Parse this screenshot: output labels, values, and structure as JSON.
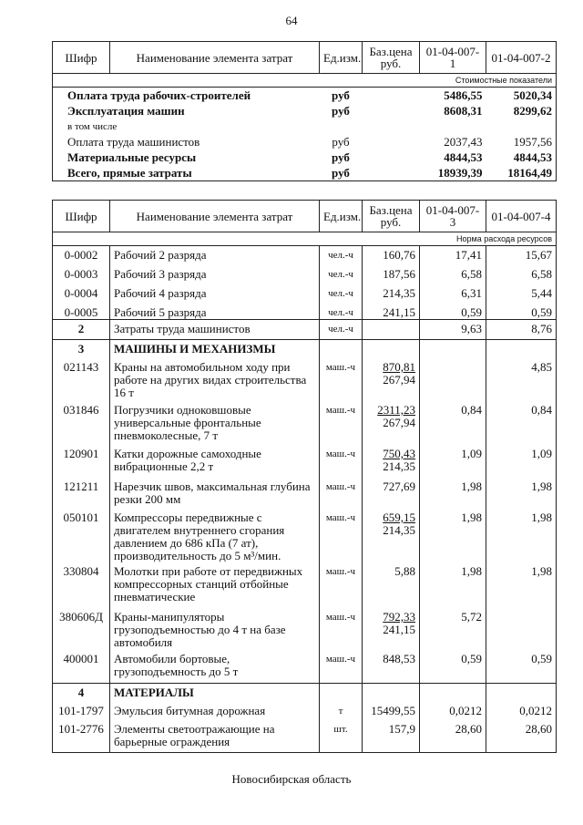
{
  "page_number": "64",
  "footer": "Новосибирская область",
  "table1": {
    "headers": [
      "Шифр",
      "Наименование элемента затрат",
      "Ед.изм.",
      "Баз.цена руб.",
      "01-04-007-1",
      "01-04-007-2"
    ],
    "subheader": "Стоимостные показатели",
    "rows": [
      {
        "name": "Оплата труда рабочих-строителей",
        "unit": "руб",
        "v1": "5486,55",
        "v2": "5020,34",
        "bold": true
      },
      {
        "name": "Эксплуатация машин",
        "unit": "руб",
        "v1": "8608,31",
        "v2": "8299,62",
        "bold": true
      },
      {
        "name": "в том числе",
        "unit": "",
        "v1": "",
        "v2": "",
        "bold": false,
        "small": true
      },
      {
        "name": "Оплата труда машинистов",
        "unit": "руб",
        "v1": "2037,43",
        "v2": "1957,56",
        "bold": false
      },
      {
        "name": "Материальные ресурсы",
        "unit": "руб",
        "v1": "4844,53",
        "v2": "4844,53",
        "bold": true
      },
      {
        "name": "Всего, прямые затраты",
        "unit": "руб",
        "v1": "18939,39",
        "v2": "18164,49",
        "bold": true
      }
    ]
  },
  "table2": {
    "headers": [
      "Шифр",
      "Наименование элемента затрат",
      "Ед.изм.",
      "Баз.цена руб.",
      "01-04-007-3",
      "01-04-007-4"
    ],
    "subheader": "Норма расхода ресурсов",
    "rows": [
      {
        "code": "0-0002",
        "name": "Рабочий 2 разряда",
        "unit": "чел.-ч",
        "price": "160,76",
        "price2": "",
        "v1": "17,41",
        "v2": "15,67"
      },
      {
        "code": "0-0003",
        "name": "Рабочий 3 разряда",
        "unit": "чел.-ч",
        "price": "187,56",
        "price2": "",
        "v1": "6,58",
        "v2": "6,58"
      },
      {
        "code": "0-0004",
        "name": "Рабочий 4 разряда",
        "unit": "чел.-ч",
        "price": "214,35",
        "price2": "",
        "v1": "6,31",
        "v2": "5,44"
      },
      {
        "code": "0-0005",
        "name": "Рабочий 5 разряда",
        "unit": "чел.-ч",
        "price": "241,15",
        "price2": "",
        "v1": "0,59",
        "v2": "0,59"
      },
      {
        "code": "2",
        "name": "Затраты труда машинистов",
        "unit": "чел.-ч",
        "price": "",
        "price2": "",
        "v1": "9,63",
        "v2": "8,76",
        "section": true,
        "sep": true
      },
      {
        "code": "3",
        "name": "МАШИНЫ И МЕХАНИЗМЫ",
        "unit": "",
        "price": "",
        "price2": "",
        "v1": "",
        "v2": "",
        "section": true,
        "heading": true,
        "sep": true
      },
      {
        "code": "021143",
        "name": "Краны на автомобильном ходу при работе на других видах строительства 16 т",
        "unit": "маш.-ч",
        "price": "870,81",
        "price2": "267,94",
        "v1": "",
        "v2": "4,85"
      },
      {
        "code": "031846",
        "name": "Погрузчики одноковшовые универсальные фронтальные пневмоколесные, 7 т",
        "unit": "маш.-ч",
        "price": "2311,23",
        "price2": "267,94",
        "v1": "0,84",
        "v2": "0,84"
      },
      {
        "code": "120901",
        "name": "Катки дорожные самоходные вибрационные 2,2 т",
        "unit": "маш.-ч",
        "price": "750,43",
        "price2": "214,35",
        "v1": "1,09",
        "v2": "1,09"
      },
      {
        "code": "121211",
        "name": "Нарезчик швов, максимальная глубина резки 200 мм",
        "unit": "маш.-ч",
        "price": "727,69",
        "price2": "",
        "v1": "1,98",
        "v2": "1,98"
      },
      {
        "code": "050101",
        "name": "Компрессоры передвижные с двигателем внутреннего сгорания давлением до 686 кПа (7 ат), производительность до 5 м³/мин.",
        "unit": "маш.-ч",
        "price": "659,15",
        "price2": "214,35",
        "v1": "1,98",
        "v2": "1,98"
      },
      {
        "code": "330804",
        "name": "Молотки при работе от передвижных компрессорных станций отбойные пневматические",
        "unit": "маш.-ч",
        "price": "5,88",
        "price2": "",
        "v1": "1,98",
        "v2": "1,98"
      },
      {
        "code": "380606Д",
        "name": "Краны-манипуляторы грузоподъемностью до 4 т на базе автомобиля",
        "unit": "маш.-ч",
        "price": "792,33",
        "price2": "241,15",
        "v1": "5,72",
        "v2": ""
      },
      {
        "code": "400001",
        "name": "Автомобили бортовые, грузоподъемность до 5 т",
        "unit": "маш.-ч",
        "price": "848,53",
        "price2": "",
        "v1": "0,59",
        "v2": "0,59"
      },
      {
        "code": "4",
        "name": "МАТЕРИАЛЫ",
        "unit": "",
        "price": "",
        "price2": "",
        "v1": "",
        "v2": "",
        "section": true,
        "heading": true,
        "sep": true
      },
      {
        "code": "101-1797",
        "name": "Эмульсия битумная дорожная",
        "unit": "т",
        "price": "15499,55",
        "price2": "",
        "v1": "0,0212",
        "v2": "0,0212"
      },
      {
        "code": "101-2776",
        "name": "Элементы светоотражающие на барьерные ограждения",
        "unit": "шт.",
        "price": "157,9",
        "price2": "",
        "v1": "28,60",
        "v2": "28,60"
      }
    ]
  }
}
